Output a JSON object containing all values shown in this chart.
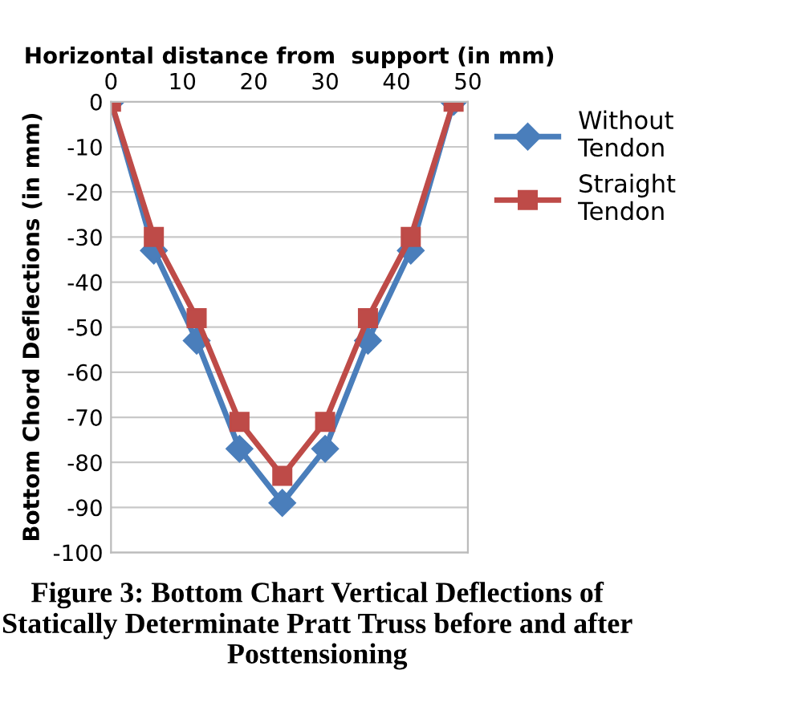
{
  "chart_data": {
    "type": "line",
    "xlabel": "Horizontal distance from  support (in mm)",
    "ylabel": "Bottom Chord Deflections (in mm)",
    "x": [
      0,
      6,
      12,
      18,
      24,
      30,
      36,
      42,
      48
    ],
    "series": [
      {
        "name": "Without\nTendon",
        "color": "#4a7ebb",
        "marker": "diamond",
        "values": [
          0,
          -33,
          -53,
          -77,
          -89,
          -77,
          -53,
          -33,
          0
        ]
      },
      {
        "name": "Straight\nTendon",
        "color": "#be4b48",
        "marker": "square",
        "values": [
          0,
          -30,
          -48,
          -71,
          -83,
          -71,
          -48,
          -30,
          0
        ]
      }
    ],
    "xlim": [
      0,
      50
    ],
    "xticks": [
      0,
      10,
      20,
      30,
      40,
      50
    ],
    "ylim": [
      -100,
      0
    ],
    "yticks": [
      0,
      -10,
      -20,
      -30,
      -40,
      -50,
      -60,
      -70,
      -80,
      -90,
      -100
    ],
    "grid": "y",
    "legend": "right",
    "annotations": [
      "Figure 3: Bottom Chart Vertical Deflections of Statically Determinate Pratt Truss before and after Posttensioning"
    ]
  }
}
